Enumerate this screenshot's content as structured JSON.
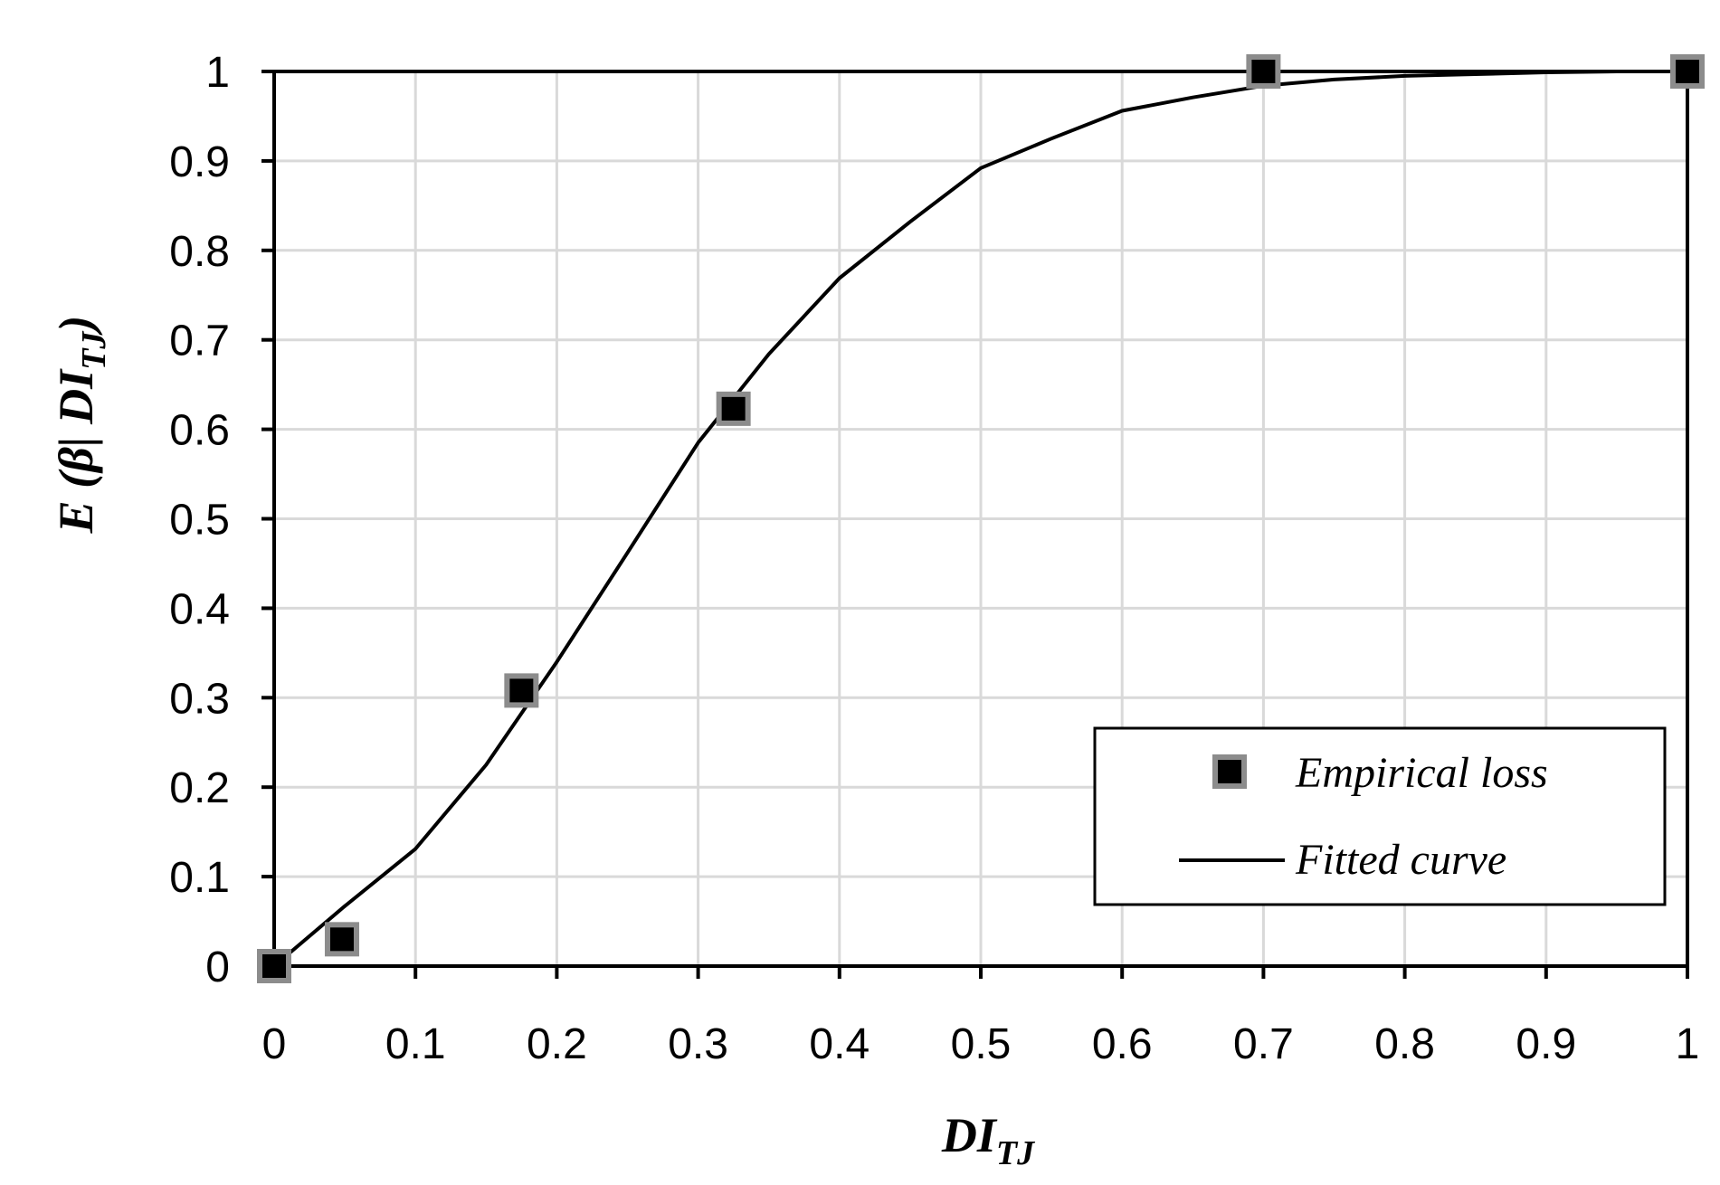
{
  "chart_data": {
    "type": "line",
    "xlabel": {
      "main": "DI",
      "sub": "TJ"
    },
    "ylabel": {
      "prefix": "E (",
      "beta": "β",
      "bar": "| ",
      "main": "DI",
      "sub": "TJ",
      "suffix": ")"
    },
    "xlim": [
      0,
      1
    ],
    "ylim": [
      0,
      1
    ],
    "xticks": [
      0,
      0.1,
      0.2,
      0.3,
      0.4,
      0.5,
      0.6,
      0.7,
      0.8,
      0.9,
      1
    ],
    "yticks": [
      0,
      0.1,
      0.2,
      0.3,
      0.4,
      0.5,
      0.6,
      0.7,
      0.8,
      0.9,
      1
    ],
    "xtick_labels": [
      "0",
      "0.1",
      "0.2",
      "0.3",
      "0.4",
      "0.5",
      "0.6",
      "0.7",
      "0.8",
      "0.9",
      "1"
    ],
    "ytick_labels": [
      "0",
      "0.1",
      "0.2",
      "0.3",
      "0.4",
      "0.5",
      "0.6",
      "0.7",
      "0.8",
      "0.9",
      "1"
    ],
    "grid": true,
    "legend_position": "bottom-right",
    "series": [
      {
        "name": "Empirical loss",
        "kind": "scatter",
        "marker": "square",
        "marker_fill": "#000000",
        "marker_edge": "#8c8c8c",
        "x": [
          0,
          0.048,
          0.175,
          0.325,
          0.7,
          1.0
        ],
        "y": [
          0,
          0.03,
          0.308,
          0.623,
          1.0,
          1.0
        ]
      },
      {
        "name": "Fitted curve",
        "kind": "line",
        "color": "#000000",
        "x": [
          0,
          0.05,
          0.1,
          0.15,
          0.2,
          0.25,
          0.3,
          0.35,
          0.4,
          0.45,
          0.5,
          0.55,
          0.6,
          0.65,
          0.7,
          0.75,
          0.8,
          0.85,
          0.9,
          0.95,
          1.0
        ],
        "y": [
          0,
          0.067,
          0.131,
          0.225,
          0.34,
          0.462,
          0.585,
          0.684,
          0.769,
          0.832,
          0.892,
          0.925,
          0.956,
          0.971,
          0.984,
          0.991,
          0.995,
          0.997,
          0.999,
          1.0,
          1.0
        ]
      }
    ]
  }
}
